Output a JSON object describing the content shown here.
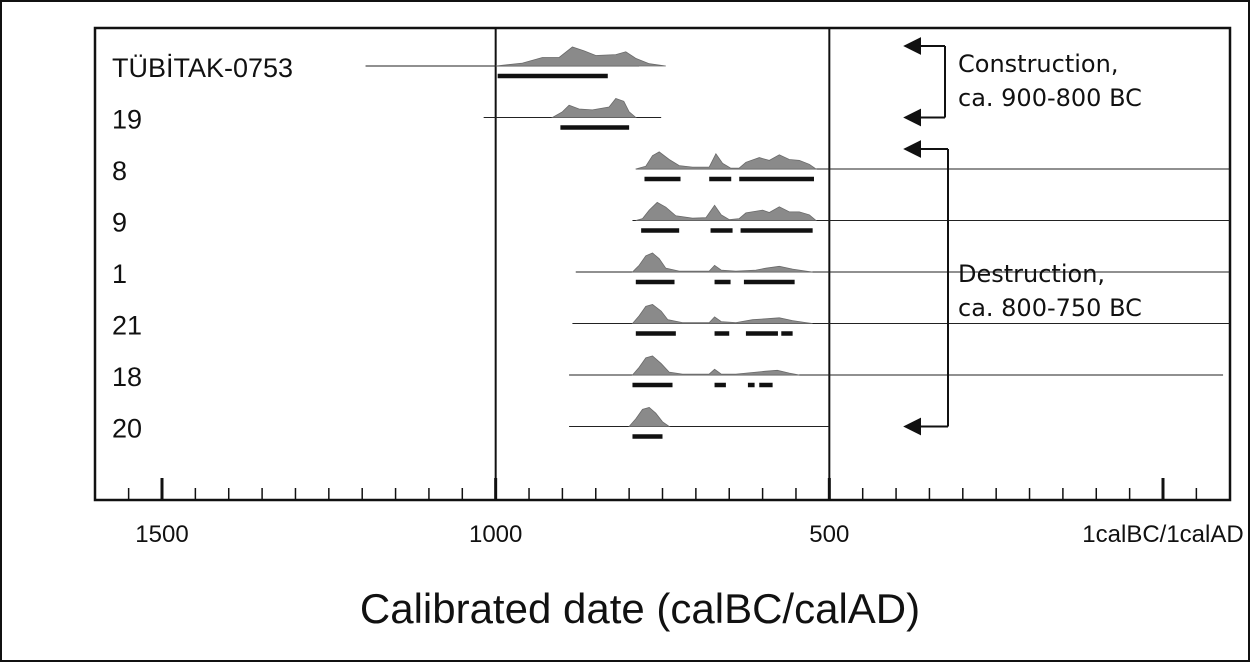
{
  "chart_data": {
    "type": "radiocarbon calibration plot",
    "xlabel": "Calibrated date (calBC/calAD)",
    "x_ticks": [
      {
        "value": 1500,
        "label": "1500"
      },
      {
        "value": 1000,
        "label": "1000"
      },
      {
        "value": 500,
        "label": "500"
      },
      {
        "value": 0,
        "label": "1calBC/1calAD"
      }
    ],
    "x_range_calBC": [
      1600,
      -100
    ],
    "minor_tick_step": 50,
    "reference_lines_calBC": [
      1000,
      500
    ],
    "samples": [
      {
        "label": "TÜBİTAK-0753",
        "range": [
          1195,
          785
        ],
        "density": [
          [
            1000,
            0
          ],
          [
            960,
            0.15
          ],
          [
            930,
            0.45
          ],
          [
            905,
            0.45
          ],
          [
            885,
            1.0
          ],
          [
            868,
            0.8
          ],
          [
            850,
            0.55
          ],
          [
            820,
            0.6
          ],
          [
            805,
            0.75
          ],
          [
            790,
            0.4
          ],
          [
            770,
            0.12
          ],
          [
            745,
            0
          ]
        ],
        "intervals": [
          [
            997,
            832
          ]
        ]
      },
      {
        "label": "19",
        "range": [
          1018,
          752
        ],
        "density": [
          [
            915,
            0
          ],
          [
            900,
            0.3
          ],
          [
            890,
            0.65
          ],
          [
            875,
            0.45
          ],
          [
            855,
            0.4
          ],
          [
            830,
            0.55
          ],
          [
            820,
            1.0
          ],
          [
            808,
            0.85
          ],
          [
            800,
            0.3
          ],
          [
            790,
            0
          ]
        ],
        "intervals": [
          [
            903,
            800
          ]
        ]
      },
      {
        "label": "8",
        "range": [
          790,
          -100
        ],
        "density": [
          [
            790,
            0
          ],
          [
            775,
            0.15
          ],
          [
            765,
            0.7
          ],
          [
            755,
            0.9
          ],
          [
            740,
            0.5
          ],
          [
            725,
            0.18
          ],
          [
            705,
            0.1
          ],
          [
            680,
            0.1
          ],
          [
            670,
            0.8
          ],
          [
            660,
            0.3
          ],
          [
            648,
            0.05
          ],
          [
            635,
            0.05
          ],
          [
            625,
            0.35
          ],
          [
            605,
            0.6
          ],
          [
            590,
            0.45
          ],
          [
            575,
            0.75
          ],
          [
            560,
            0.5
          ],
          [
            545,
            0.45
          ],
          [
            530,
            0.25
          ],
          [
            520,
            0
          ]
        ],
        "intervals": [
          [
            777,
            723
          ],
          [
            680,
            647
          ],
          [
            635,
            523
          ]
        ]
      },
      {
        "label": "9",
        "range": [
          795,
          -100
        ],
        "density": [
          [
            790,
            0
          ],
          [
            780,
            0.1
          ],
          [
            770,
            0.55
          ],
          [
            758,
            0.95
          ],
          [
            745,
            0.7
          ],
          [
            730,
            0.25
          ],
          [
            705,
            0.12
          ],
          [
            685,
            0.15
          ],
          [
            672,
            0.8
          ],
          [
            662,
            0.3
          ],
          [
            650,
            0.05
          ],
          [
            635,
            0.1
          ],
          [
            625,
            0.4
          ],
          [
            600,
            0.55
          ],
          [
            590,
            0.42
          ],
          [
            575,
            0.72
          ],
          [
            560,
            0.45
          ],
          [
            545,
            0.45
          ],
          [
            530,
            0.3
          ],
          [
            520,
            0
          ]
        ],
        "intervals": [
          [
            782,
            725
          ],
          [
            678,
            645
          ],
          [
            633,
            525
          ]
        ]
      },
      {
        "label": "1",
        "range": [
          880,
          -100
        ],
        "density": [
          [
            795,
            0
          ],
          [
            785,
            0.35
          ],
          [
            775,
            0.85
          ],
          [
            765,
            1.0
          ],
          [
            755,
            0.7
          ],
          [
            745,
            0.2
          ],
          [
            725,
            0.05
          ],
          [
            680,
            0.05
          ],
          [
            672,
            0.35
          ],
          [
            662,
            0.1
          ],
          [
            640,
            0.05
          ],
          [
            610,
            0.1
          ],
          [
            595,
            0.2
          ],
          [
            575,
            0.3
          ],
          [
            555,
            0.15
          ],
          [
            535,
            0.05
          ],
          [
            525,
            0
          ]
        ],
        "intervals": [
          [
            790,
            732
          ],
          [
            672,
            648
          ],
          [
            628,
            552
          ]
        ]
      },
      {
        "label": "21",
        "range": [
          885,
          -100
        ],
        "density": [
          [
            795,
            0
          ],
          [
            785,
            0.4
          ],
          [
            775,
            0.9
          ],
          [
            765,
            1.0
          ],
          [
            752,
            0.65
          ],
          [
            742,
            0.2
          ],
          [
            720,
            0.05
          ],
          [
            680,
            0.05
          ],
          [
            672,
            0.35
          ],
          [
            662,
            0.1
          ],
          [
            640,
            0.05
          ],
          [
            615,
            0.2
          ],
          [
            595,
            0.25
          ],
          [
            575,
            0.3
          ],
          [
            555,
            0.15
          ],
          [
            535,
            0.05
          ],
          [
            525,
            0
          ]
        ],
        "intervals": [
          [
            790,
            730
          ],
          [
            672,
            650
          ],
          [
            625,
            577
          ],
          [
            572,
            555
          ]
        ]
      },
      {
        "label": "18",
        "range": [
          890,
          -90
        ],
        "density": [
          [
            795,
            0
          ],
          [
            785,
            0.4
          ],
          [
            775,
            0.9
          ],
          [
            765,
            1.0
          ],
          [
            752,
            0.6
          ],
          [
            740,
            0.15
          ],
          [
            720,
            0.05
          ],
          [
            680,
            0.05
          ],
          [
            672,
            0.3
          ],
          [
            662,
            0.05
          ],
          [
            640,
            0.05
          ],
          [
            595,
            0.2
          ],
          [
            578,
            0.25
          ],
          [
            560,
            0.1
          ],
          [
            545,
            0
          ]
        ],
        "intervals": [
          [
            795,
            735
          ],
          [
            672,
            655
          ],
          [
            622,
            612
          ],
          [
            605,
            585
          ]
        ]
      },
      {
        "label": "20",
        "range": [
          890,
          500
        ],
        "density": [
          [
            800,
            0
          ],
          [
            790,
            0.4
          ],
          [
            780,
            0.9
          ],
          [
            770,
            1.0
          ],
          [
            760,
            0.7
          ],
          [
            750,
            0.25
          ],
          [
            740,
            0
          ]
        ],
        "intervals": [
          [
            795,
            750
          ]
        ]
      }
    ],
    "annotations": [
      {
        "text": [
          "Construction,",
          "ca. 900-800 BC"
        ],
        "samples": [
          "TÜBİTAK-0753",
          "19"
        ]
      },
      {
        "text": [
          "Destruction,",
          "ca. 800-750 BC"
        ],
        "samples": [
          "8",
          "20"
        ]
      }
    ]
  }
}
